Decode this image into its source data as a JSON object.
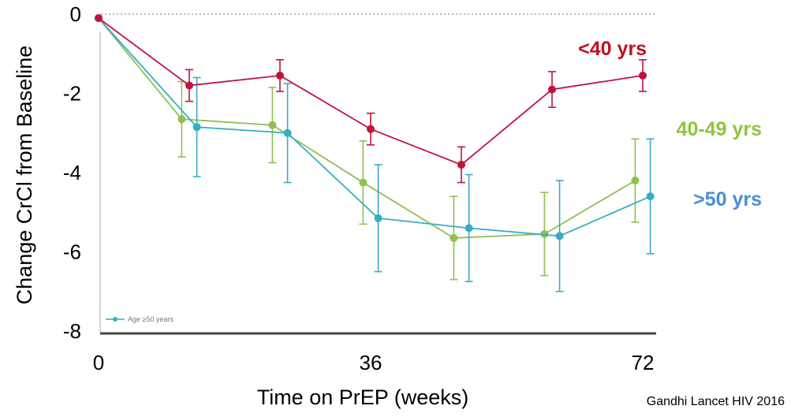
{
  "chart_data": {
    "type": "line",
    "xlabel": "Time on PrEP (weeks)",
    "ylabel": "Change CrCl from Baseline",
    "x_ticks": [
      "0",
      "36",
      "72"
    ],
    "y_ticks": [
      "0",
      "-2",
      "-4",
      "-6",
      "-8"
    ],
    "xlim": [
      0,
      72
    ],
    "ylim": [
      -8,
      0
    ],
    "legend_fragment": "Age ≥50 years",
    "series": [
      {
        "name": "<40 yrs",
        "color": "#c0143c",
        "label_color": "#c0121e",
        "x": [
          0,
          12,
          24,
          36,
          48,
          60,
          72
        ],
        "y": [
          -0.1,
          -1.8,
          -1.55,
          -2.9,
          -3.8,
          -1.9,
          -1.55
        ],
        "err": [
          0,
          0.4,
          0.4,
          0.4,
          0.45,
          0.45,
          0.4
        ]
      },
      {
        "name": "40-49 yrs",
        "color": "#8fc050",
        "label_color": "#8dc63f",
        "x": [
          0,
          11,
          23,
          35,
          47,
          59,
          71
        ],
        "y": [
          -0.1,
          -2.65,
          -2.8,
          -4.25,
          -5.65,
          -5.55,
          -4.2
        ],
        "err": [
          0,
          0.95,
          0.95,
          1.05,
          1.05,
          1.05,
          1.05
        ]
      },
      {
        "name": ">50 yrs",
        "color": "#36adc4",
        "label_color": "#4a8fd4",
        "x": [
          0,
          13,
          25,
          37,
          49,
          61,
          73
        ],
        "y": [
          -0.1,
          -2.85,
          -3.0,
          -5.15,
          -5.4,
          -5.6,
          -4.6
        ],
        "err": [
          0,
          1.25,
          1.25,
          1.35,
          1.35,
          1.4,
          1.45
        ]
      }
    ]
  },
  "citation": "Gandhi Lancet HIV 2016"
}
